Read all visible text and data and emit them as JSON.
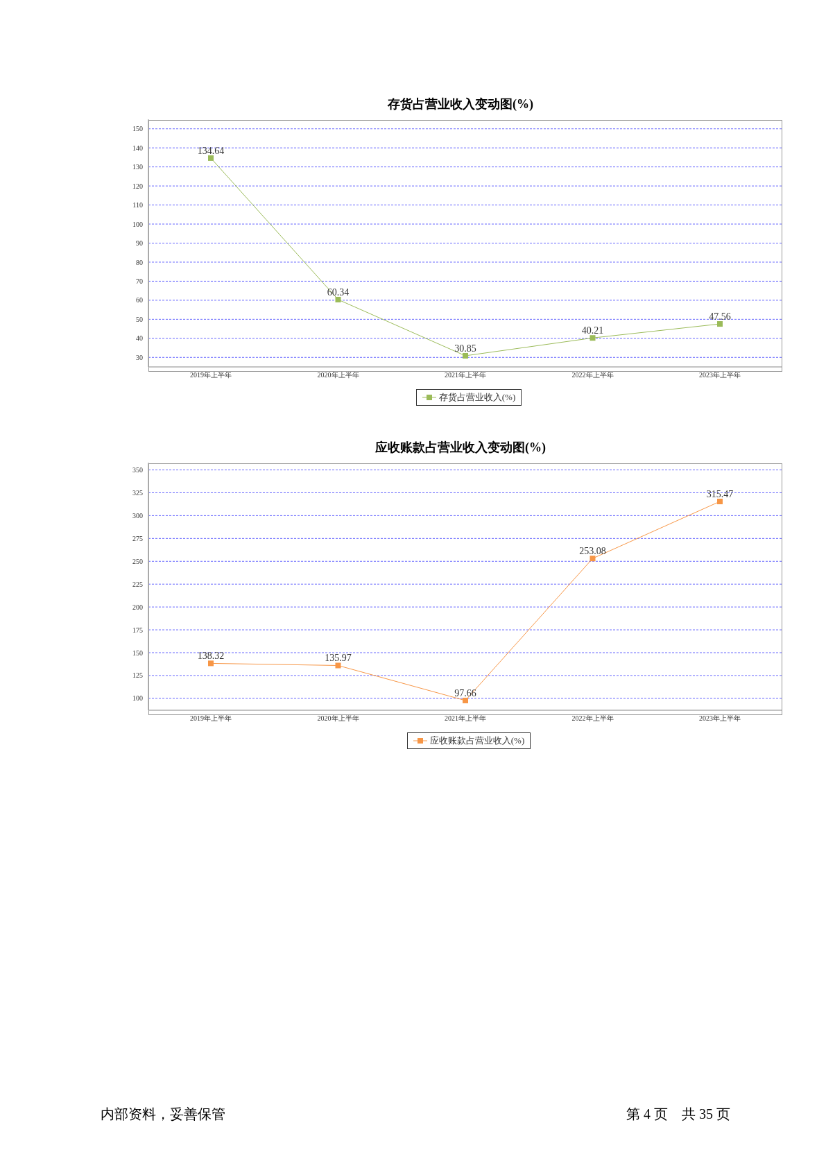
{
  "chart_data": [
    {
      "type": "line",
      "title": "存货占营业收入变动图(%)",
      "categories": [
        "2019年上半年",
        "2020年上半年",
        "2021年上半年",
        "2022年上半年",
        "2023年上半年"
      ],
      "series": [
        {
          "name": "存货占营业收入(%)",
          "color": "#9bbb59",
          "values": [
            134.64,
            60.34,
            30.85,
            40.21,
            47.56
          ]
        }
      ],
      "ylim": [
        25,
        155
      ],
      "yticks": [
        30,
        40,
        50,
        60,
        70,
        80,
        90,
        100,
        110,
        120,
        130,
        140,
        150
      ],
      "grid": "y",
      "legend": "bottom",
      "marker": "square",
      "data_labels": true
    },
    {
      "type": "line",
      "title": "应收账款占营业收入变动图(%)",
      "categories": [
        "2019年上半年",
        "2020年上半年",
        "2021年上半年",
        "2022年上半年",
        "2023年上半年"
      ],
      "series": [
        {
          "name": "应收账款占营业收入(%)",
          "color": "#f79646",
          "values": [
            138.32,
            135.97,
            97.66,
            253.08,
            315.47
          ]
        }
      ],
      "ylim": [
        87,
        358
      ],
      "yticks": [
        100,
        125,
        150,
        175,
        200,
        225,
        250,
        275,
        300,
        325,
        350
      ],
      "grid": "y",
      "legend": "bottom",
      "marker": "square",
      "data_labels": true,
      "annotations": [
        "内部资料，妥善保管",
        "第 4 页　共 35 页"
      ]
    }
  ]
}
